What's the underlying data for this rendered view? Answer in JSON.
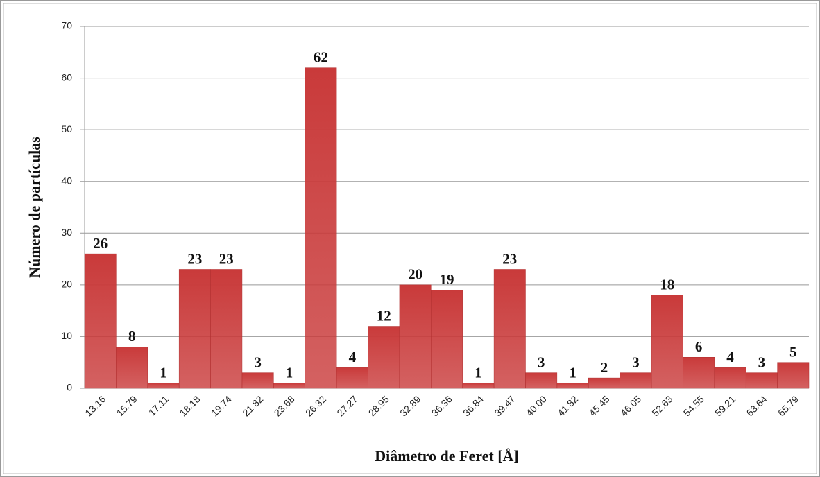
{
  "chart_data": {
    "type": "bar",
    "x_label": "Diâmetro de Feret [Å]",
    "y_label": "Número de partículas",
    "categories": [
      "13.16",
      "15.79",
      "17.11",
      "18.18",
      "19.74",
      "21.82",
      "23.68",
      "26.32",
      "27.27",
      "28.95",
      "32.89",
      "36.36",
      "36.84",
      "39.47",
      "40.00",
      "41.82",
      "45.45",
      "46.05",
      "52.63",
      "54.55",
      "59.21",
      "63.64",
      "65.79"
    ],
    "values": [
      26,
      8,
      1,
      23,
      23,
      3,
      1,
      62,
      4,
      12,
      20,
      19,
      1,
      23,
      3,
      1,
      2,
      3,
      18,
      6,
      4,
      3,
      5
    ],
    "color": "#c93a3a",
    "ylim": [
      0,
      70
    ],
    "yticks": [
      0,
      10,
      20,
      30,
      40,
      50,
      60,
      70
    ],
    "grid": true
  }
}
